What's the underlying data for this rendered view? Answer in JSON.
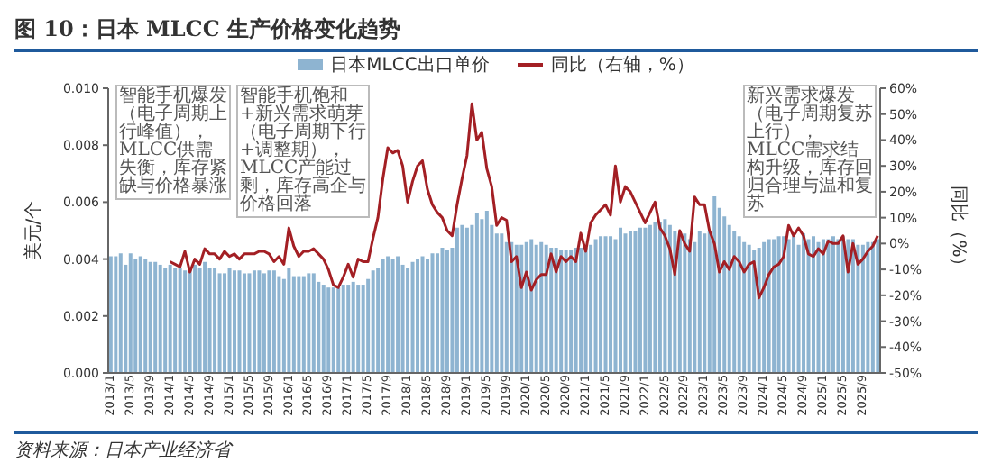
{
  "chart_data": {
    "type": "bar",
    "title": "图 10：日本 MLCC 生产价格变化趋势",
    "categories": [
      "2013/1",
      null,
      null,
      null,
      "2013/5",
      null,
      null,
      null,
      "2013/9",
      null,
      null,
      null,
      "2014/1",
      null,
      null,
      null,
      "2014/5",
      null,
      null,
      null,
      "2014/9",
      null,
      null,
      null,
      "2015/1",
      null,
      null,
      null,
      "2015/5",
      null,
      null,
      null,
      "2015/9",
      null,
      null,
      null,
      "2016/1",
      null,
      null,
      null,
      "2016/5",
      null,
      null,
      null,
      "2016/9",
      null,
      null,
      null,
      "2017/1",
      null,
      null,
      null,
      "2017/5",
      null,
      null,
      null,
      "2017/9",
      null,
      null,
      null,
      "2018/1",
      null,
      null,
      null,
      "2018/5",
      null,
      null,
      null,
      "2018/9",
      null,
      null,
      null,
      "2019/1",
      null,
      null,
      null,
      "2019/5",
      null,
      null,
      null,
      "2019/9",
      null,
      null,
      null,
      "2020/1",
      null,
      null,
      null,
      "2020/5",
      null,
      null,
      null,
      "2020/9",
      null,
      null,
      null,
      "2021/1",
      null,
      null,
      null,
      "2021/5",
      null,
      null,
      null,
      "2021/9",
      null,
      null,
      null,
      "2022/1",
      null,
      null,
      null,
      "2022/5",
      null,
      null,
      null,
      "2022/9",
      null,
      null,
      null,
      "2023/1",
      null,
      null,
      null,
      "2023/5",
      null,
      null,
      null,
      "2023/9",
      null,
      null,
      null,
      "2024/1",
      null,
      null,
      null,
      "2024/5",
      null,
      null,
      null,
      "2024/9",
      null,
      null,
      null,
      "2025/1",
      null,
      null,
      null,
      "2025/5",
      null,
      null,
      null,
      "2025/9",
      null,
      null,
      null
    ],
    "series": [
      {
        "name": "日本MLCC出口单价",
        "color": "#8eb4d1",
        "values": [
          0.0041,
          0.0041,
          0.0042,
          0.0038,
          0.0042,
          0.004,
          0.0041,
          0.004,
          0.0039,
          0.0039,
          0.0038,
          0.0037,
          0.0038,
          0.0037,
          0.0037,
          0.0036,
          0.0037,
          0.0038,
          0.0037,
          0.0039,
          0.0037,
          0.0037,
          0.0035,
          0.0035,
          0.0037,
          0.0036,
          0.0036,
          0.0035,
          0.0035,
          0.0036,
          0.0036,
          0.0035,
          0.0036,
          0.0036,
          0.0034,
          0.0033,
          0.0037,
          0.0034,
          0.0034,
          0.0034,
          0.0035,
          0.0035,
          0.0032,
          0.0031,
          0.003,
          0.003,
          0.003,
          0.0031,
          0.0031,
          0.0032,
          0.0031,
          0.0031,
          0.0033,
          0.0036,
          0.0037,
          0.004,
          0.0041,
          0.004,
          0.0041,
          0.0038,
          0.0037,
          0.0039,
          0.004,
          0.0041,
          0.004,
          0.0042,
          0.0042,
          0.0044,
          0.0043,
          0.0044,
          0.0051,
          0.0052,
          0.0051,
          0.0052,
          0.0056,
          0.0054,
          0.0057,
          0.0052,
          0.0049,
          0.0049,
          0.0046,
          0.0046,
          0.0045,
          0.0045,
          0.0046,
          0.0047,
          0.0045,
          0.0046,
          0.0045,
          0.0044,
          0.0044,
          0.0043,
          0.0043,
          0.0043,
          0.0044,
          0.0044,
          0.0044,
          0.0045,
          0.0047,
          0.0048,
          0.0048,
          0.0048,
          0.0047,
          0.0051,
          0.0049,
          0.005,
          0.005,
          0.0051,
          0.0051,
          0.0052,
          0.0053,
          0.0053,
          0.0054,
          0.0052,
          0.005,
          0.0048,
          0.0049,
          0.0047,
          0.0046,
          0.005,
          0.0049,
          0.005,
          0.0062,
          0.0058,
          0.0055,
          0.0052,
          0.005,
          0.0048,
          0.0046,
          0.0045,
          0.0043,
          0.0044,
          0.0046,
          0.0047,
          0.0047,
          0.0048,
          0.0048,
          0.0047,
          0.0048,
          0.0045,
          0.0049,
          0.0047,
          0.0048,
          0.0046,
          0.0047,
          0.0047,
          0.0048,
          0.0047,
          0.0048,
          0.0047,
          0.0047,
          0.0045,
          0.0045,
          0.0046,
          0.0046,
          0.0047
        ]
      },
      {
        "name": "同比（右轴，%）",
        "type": "line",
        "axis": "y2",
        "color": "#a31f24",
        "values": [
          null,
          null,
          null,
          null,
          null,
          null,
          null,
          null,
          null,
          null,
          null,
          null,
          -7,
          -8,
          -9,
          -3,
          -11,
          -6,
          -8,
          -2,
          -4,
          -4,
          -6,
          -3,
          -5,
          -4,
          -6,
          -4,
          -4,
          -4,
          -3,
          -3,
          -4,
          -7,
          -5,
          -8,
          6,
          -1,
          -5,
          -3,
          -3,
          -2,
          -4,
          -6,
          -10,
          -16,
          -17,
          -13,
          -8,
          -13,
          -6,
          -7,
          -7,
          2,
          10,
          25,
          37,
          35,
          36,
          30,
          16,
          24,
          30,
          32,
          21,
          15,
          12,
          10,
          5,
          3,
          15,
          25,
          34,
          54,
          40,
          43,
          29,
          22,
          7,
          10,
          9,
          -7,
          -5,
          -17,
          -11,
          -18,
          -14,
          -12,
          -12,
          -4,
          -11,
          -5,
          -7,
          -5,
          -7,
          4,
          -3,
          8,
          11,
          13,
          15,
          11,
          30,
          16,
          22,
          20,
          16,
          12,
          8,
          12,
          16,
          6,
          3,
          -2,
          -12,
          5,
          0,
          -3,
          18,
          15,
          15,
          5,
          0,
          -11,
          -7,
          -10,
          -5,
          -7,
          -11,
          -8,
          -7,
          -21,
          -17,
          -12,
          -9,
          -8,
          -5,
          7,
          3,
          6,
          3,
          -4,
          -5,
          -2,
          -4,
          1,
          0,
          0,
          3,
          -11,
          0,
          -8,
          -6,
          -3,
          -1,
          3
        ]
      }
    ],
    "ylabel": "美元/个",
    "y2label": "同比（%）",
    "ylim": [
      0,
      0.01
    ],
    "yticks": [
      {
        "value": 0,
        "label": "0.000"
      },
      {
        "value": 0.002,
        "label": "0.002"
      },
      {
        "value": 0.004,
        "label": "0.004"
      },
      {
        "value": 0.006,
        "label": "0.006"
      },
      {
        "value": 0.008,
        "label": "0.008"
      },
      {
        "value": 0.01,
        "label": "0.010"
      }
    ],
    "y2lim": [
      -50,
      60
    ],
    "y2ticks": [
      {
        "value": -50,
        "label": "-50%"
      },
      {
        "value": -40,
        "label": "-40%"
      },
      {
        "value": -30,
        "label": "-30%"
      },
      {
        "value": -20,
        "label": "-20%"
      },
      {
        "value": -10,
        "label": "-10%"
      },
      {
        "value": 0,
        "label": "0%"
      },
      {
        "value": 10,
        "label": "10%"
      },
      {
        "value": 20,
        "label": "20%"
      },
      {
        "value": 30,
        "label": "30%"
      },
      {
        "value": 40,
        "label": "40%"
      },
      {
        "value": 50,
        "label": "50%"
      },
      {
        "value": 60,
        "label": "60%"
      }
    ],
    "legend": "top",
    "grid": false,
    "annotations": [
      "智能手机爆发（电子周期上行峰值），MLCC供需失衡，库存紧缺与价格暴涨",
      "智能手机饱和+新兴需求萌芽（电子周期下行+调整期），MLCC产能过剩，库存高企与价格回落",
      "新兴需求爆发（电子周期复苏上行），MLCC需求结构升级，库存回归合理与温和复苏",
      "资料来源：日本产业经济省"
    ]
  }
}
